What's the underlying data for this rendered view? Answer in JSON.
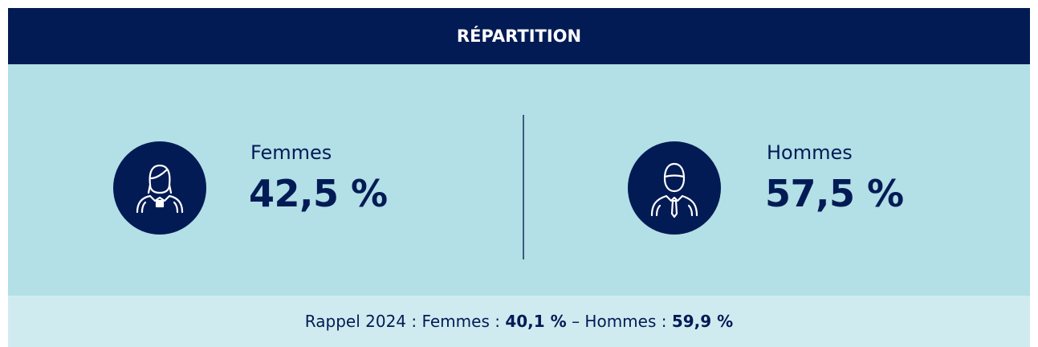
{
  "header": {
    "title": "RÉPARTITION"
  },
  "items": [
    {
      "label": "Femmes",
      "value": "42,5 %"
    },
    {
      "label": "Hommes",
      "value": "57,5 %"
    }
  ],
  "footer": {
    "prefix": "Rappel 2024 : Femmes :",
    "women": "40,1 %",
    "middle": "– Hommes :",
    "men": "59,9 %"
  }
}
